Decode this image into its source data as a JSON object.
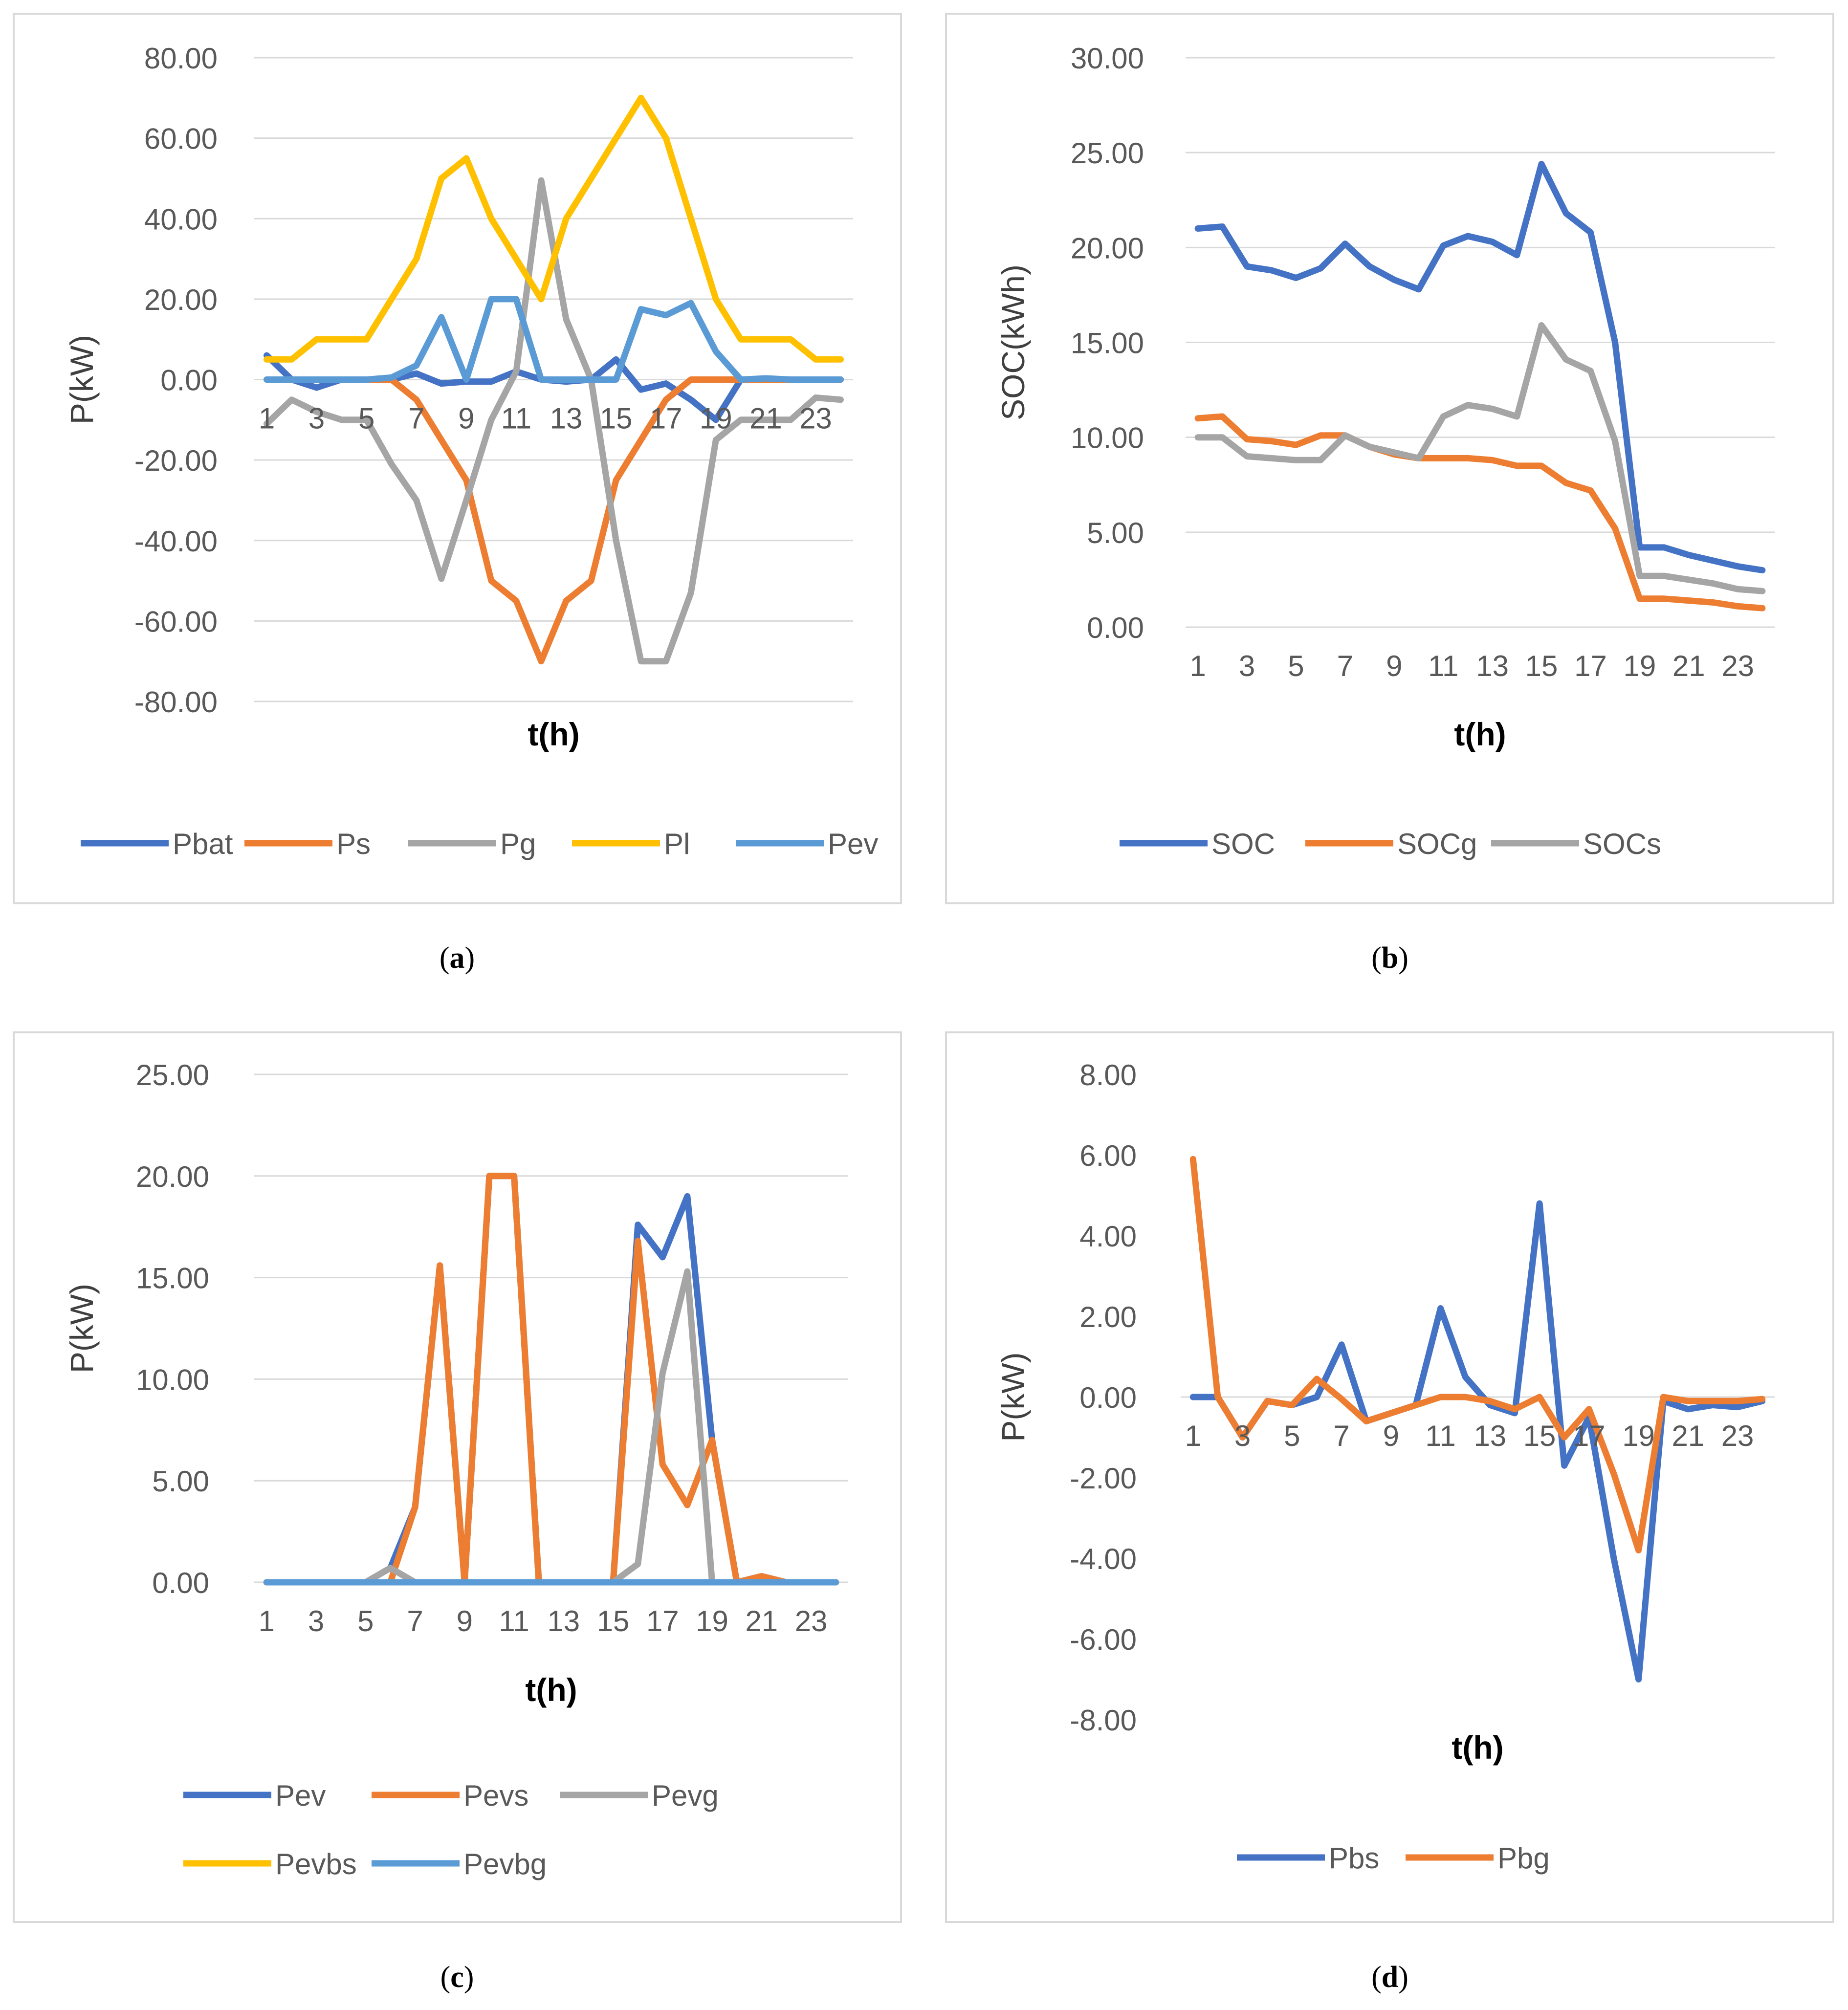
{
  "chart_data": [
    {
      "type": "line",
      "panel_label": "a",
      "title": "",
      "xlabel": "t(h)",
      "ylabel": "P(kW)",
      "ylim": [
        -80,
        80
      ],
      "y_ticks": [
        "80.00",
        "60.00",
        "40.00",
        "20.00",
        "0.00",
        "-20.00",
        "-40.00",
        "-60.00",
        "-80.00"
      ],
      "x": [
        1,
        2,
        3,
        4,
        5,
        6,
        7,
        8,
        9,
        10,
        11,
        12,
        13,
        14,
        15,
        16,
        17,
        18,
        19,
        20,
        21,
        22,
        23,
        24
      ],
      "x_ticks": [
        "1",
        "3",
        "5",
        "7",
        "9",
        "11",
        "13",
        "15",
        "17",
        "19",
        "21",
        "23"
      ],
      "x_tick_position": "at-zero",
      "grid": true,
      "legend": "bottom",
      "series": [
        {
          "name": "Pbat",
          "color": "#4472C4",
          "values": [
            6,
            0,
            -2,
            0,
            0,
            0,
            1.5,
            -1,
            -0.5,
            -0.5,
            2,
            0,
            -0.5,
            0,
            5,
            -2.5,
            -1,
            -5,
            -10,
            0,
            0,
            0,
            0,
            0
          ]
        },
        {
          "name": "Ps",
          "color": "#ED7D31",
          "values": [
            0,
            0,
            0,
            0,
            0,
            0,
            -5,
            -15,
            -25,
            -50,
            -55,
            -70,
            -55,
            -50,
            -25,
            -15,
            -5,
            0,
            0,
            0,
            0,
            0,
            0,
            0
          ]
        },
        {
          "name": "Pg",
          "color": "#A5A5A5",
          "values": [
            -11,
            -5,
            -8,
            -10,
            -10,
            -21,
            -30,
            -49.5,
            -30,
            -10,
            2,
            49.5,
            15,
            0,
            -40,
            -70,
            -70,
            -53,
            -15,
            -10,
            -10,
            -10,
            -4.5,
            -5
          ]
        },
        {
          "name": "Pl",
          "color": "#FFC000",
          "values": [
            5,
            5,
            10,
            10,
            10,
            20,
            30,
            50,
            55,
            40,
            30,
            20,
            40,
            50,
            60,
            70,
            60,
            40,
            20,
            10,
            10,
            10,
            5,
            5
          ]
        },
        {
          "name": "Pev",
          "color": "#5B9BD5",
          "values": [
            0,
            0,
            0,
            0,
            0,
            0.5,
            3.5,
            15.5,
            0,
            20,
            20,
            0,
            0,
            0,
            0,
            17.5,
            16,
            19,
            7,
            0,
            0.3,
            0,
            0,
            0
          ]
        }
      ]
    },
    {
      "type": "line",
      "panel_label": "b",
      "title": "",
      "xlabel": "t(h)",
      "ylabel": "SOC(kWh)",
      "ylim": [
        0,
        30
      ],
      "y_ticks": [
        "30.00",
        "25.00",
        "20.00",
        "15.00",
        "10.00",
        "5.00",
        "0.00"
      ],
      "x": [
        1,
        2,
        3,
        4,
        5,
        6,
        7,
        8,
        9,
        10,
        11,
        12,
        13,
        14,
        15,
        16,
        17,
        18,
        19,
        20,
        21,
        22,
        23,
        24
      ],
      "x_ticks": [
        "1",
        "3",
        "5",
        "7",
        "9",
        "11",
        "13",
        "15",
        "17",
        "19",
        "21",
        "23"
      ],
      "x_tick_position": "bottom",
      "grid": true,
      "legend": "bottom",
      "series": [
        {
          "name": "SOC",
          "color": "#4472C4",
          "values": [
            21,
            21.1,
            19,
            18.8,
            18.4,
            18.9,
            20.2,
            19,
            18.3,
            17.8,
            20.1,
            20.6,
            20.3,
            19.6,
            24.4,
            21.8,
            20.8,
            15,
            4.2,
            4.2,
            3.8,
            3.5,
            3.2,
            3
          ]
        },
        {
          "name": "SOCg",
          "color": "#ED7D31",
          "values": [
            11,
            11.1,
            9.9,
            9.8,
            9.6,
            10.1,
            10.1,
            9.5,
            9.1,
            8.9,
            8.9,
            8.9,
            8.8,
            8.5,
            8.5,
            7.6,
            7.2,
            5.2,
            1.5,
            1.5,
            1.4,
            1.3,
            1.1,
            1
          ]
        },
        {
          "name": "SOCs",
          "color": "#A5A5A5",
          "values": [
            10,
            10,
            9,
            8.9,
            8.8,
            8.8,
            10.1,
            9.5,
            9.2,
            8.9,
            11.1,
            11.7,
            11.5,
            11.1,
            15.9,
            14.1,
            13.5,
            9.8,
            2.7,
            2.7,
            2.5,
            2.3,
            2,
            1.9
          ]
        }
      ]
    },
    {
      "type": "line",
      "panel_label": "c",
      "title": "",
      "xlabel": "t(h)",
      "ylabel": "P(kW)",
      "ylim": [
        0,
        25
      ],
      "y_ticks": [
        "25.00",
        "20.00",
        "15.00",
        "10.00",
        "5.00",
        "0.00"
      ],
      "x": [
        1,
        2,
        3,
        4,
        5,
        6,
        7,
        8,
        9,
        10,
        11,
        12,
        13,
        14,
        15,
        16,
        17,
        18,
        19,
        20,
        21,
        22,
        23,
        24
      ],
      "x_ticks": [
        "1",
        "3",
        "5",
        "7",
        "9",
        "11",
        "13",
        "15",
        "17",
        "19",
        "21",
        "23"
      ],
      "x_tick_position": "bottom",
      "grid": true,
      "legend": "bottom",
      "series": [
        {
          "name": "Pev",
          "color": "#4472C4",
          "values": [
            0,
            0,
            0,
            0,
            0,
            0.7,
            3.7,
            15.6,
            0,
            20,
            20,
            0,
            0,
            0,
            0,
            17.6,
            16,
            19,
            7,
            0,
            0.3,
            0,
            0,
            0
          ]
        },
        {
          "name": "Pevs",
          "color": "#ED7D31",
          "values": [
            0,
            0,
            0,
            0,
            0,
            0,
            3.7,
            15.6,
            0,
            20,
            20,
            0,
            0,
            0,
            0,
            16.8,
            5.8,
            3.8,
            7,
            0,
            0.3,
            0,
            0,
            0
          ]
        },
        {
          "name": "Pevg",
          "color": "#A5A5A5",
          "values": [
            0,
            0,
            0,
            0,
            0,
            0.7,
            0,
            0,
            0,
            0,
            0,
            0,
            0,
            0,
            0,
            0.9,
            10.3,
            15.3,
            0,
            0,
            0,
            0,
            0,
            0
          ]
        },
        {
          "name": "Pevbs",
          "color": "#FFC000",
          "values": [
            0,
            0,
            0,
            0,
            0,
            0,
            0,
            0,
            0,
            0,
            0,
            0,
            0,
            0,
            0,
            0,
            0,
            0,
            0,
            0,
            0,
            0,
            0,
            0
          ]
        },
        {
          "name": "Pevbg",
          "color": "#5B9BD5",
          "values": [
            0,
            0,
            0,
            0,
            0,
            0,
            0,
            0,
            0,
            0,
            0,
            0,
            0,
            0,
            0,
            0,
            0,
            0,
            0,
            0,
            0,
            0,
            0,
            0
          ]
        }
      ]
    },
    {
      "type": "line",
      "panel_label": "d",
      "title": "",
      "xlabel": "t(h)",
      "ylabel": "P(kW)",
      "ylim": [
        -8,
        8
      ],
      "y_ticks": [
        "8.00",
        "6.00",
        "4.00",
        "2.00",
        "0.00",
        "-2.00",
        "-4.00",
        "-6.00",
        "-8.00"
      ],
      "x": [
        1,
        2,
        3,
        4,
        5,
        6,
        7,
        8,
        9,
        10,
        11,
        12,
        13,
        14,
        15,
        16,
        17,
        18,
        19,
        20,
        21,
        22,
        23,
        24
      ],
      "x_ticks": [
        "1",
        "3",
        "5",
        "7",
        "9",
        "11",
        "13",
        "15",
        "17",
        "19",
        "21",
        "23"
      ],
      "x_tick_position": "at-zero",
      "grid": false,
      "legend": "bottom",
      "series": [
        {
          "name": "Pbs",
          "color": "#4472C4",
          "values": [
            0,
            0,
            -1,
            -0.1,
            -0.2,
            0,
            1.3,
            -0.6,
            -0.4,
            -0.2,
            2.2,
            0.5,
            -0.2,
            -0.4,
            4.8,
            -1.7,
            -0.5,
            -4,
            -7,
            -0.1,
            -0.3,
            -0.2,
            -0.25,
            -0.1
          ]
        },
        {
          "name": "Pbg",
          "color": "#ED7D31",
          "values": [
            5.9,
            0,
            -1,
            -0.1,
            -0.2,
            0.45,
            -0.05,
            -0.6,
            -0.4,
            -0.2,
            0,
            0,
            -0.1,
            -0.3,
            0,
            -1,
            -0.3,
            -1.9,
            -3.8,
            0,
            -0.1,
            -0.1,
            -0.1,
            -0.05
          ]
        }
      ]
    }
  ]
}
